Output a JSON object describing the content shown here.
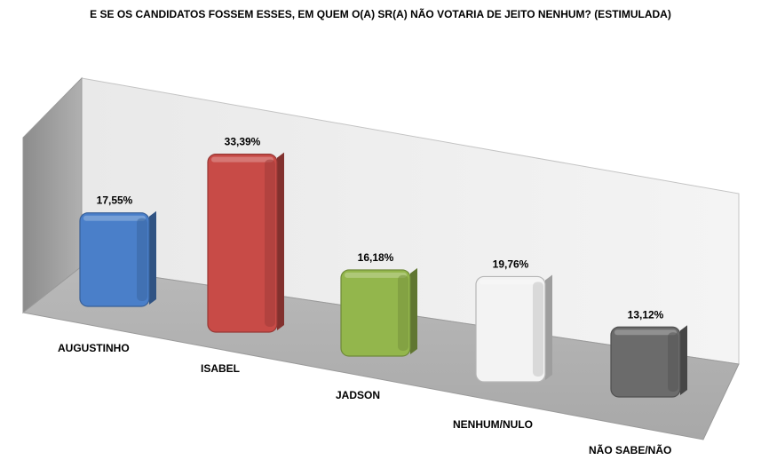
{
  "chart_data": {
    "type": "bar",
    "title": "E SE OS CANDIDATOS FOSSEM ESSES, EM QUEM O(A) SR(A) NÃO VOTARIA DE JEITO NENHUM? (ESTIMULADA)",
    "categories": [
      "AUGUSTINHO",
      "ISABEL",
      "JADSON",
      "NENHUM/NULO",
      "NÃO SABE/NÃO"
    ],
    "values": [
      17.55,
      33.39,
      16.18,
      19.76,
      13.12
    ],
    "value_labels": [
      "17,55%",
      "33,39%",
      "16,18%",
      "19,76%",
      "13,12%"
    ],
    "colors": [
      "#4a7fc9",
      "#c84b47",
      "#93b64c",
      "#f3f3f3",
      "#6b6b6b"
    ],
    "xlabel": "",
    "ylabel": "",
    "grid": false,
    "style": "3d-perspective"
  }
}
